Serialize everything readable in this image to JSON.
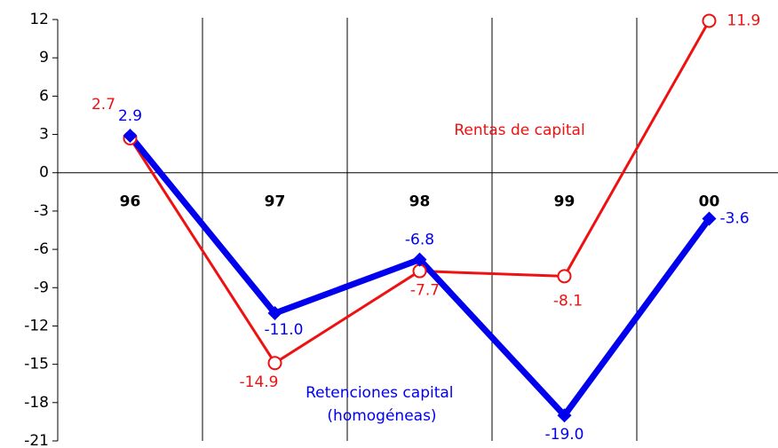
{
  "chart_data": {
    "type": "line",
    "categories": [
      "96",
      "97",
      "98",
      "99",
      "00"
    ],
    "series": [
      {
        "name": "Rentas de capital",
        "color": "#ee1111",
        "marker": "circle",
        "values": [
          2.7,
          -14.9,
          -7.7,
          -8.1,
          11.9
        ]
      },
      {
        "name": "Retenciones capital (homogéneas)",
        "color": "#0000ee",
        "marker": "diamond",
        "values": [
          2.9,
          -11.0,
          -6.8,
          -19.0,
          -3.6
        ],
        "value_labels": [
          "2.9",
          "-11.0",
          "-6.8",
          "-19.0",
          "-3.6"
        ]
      }
    ],
    "ylim": [
      -21,
      12
    ],
    "yticks": [
      12,
      9,
      6,
      3,
      0,
      -3,
      -6,
      -9,
      -12,
      -15,
      -18,
      -21
    ],
    "grid": false
  }
}
